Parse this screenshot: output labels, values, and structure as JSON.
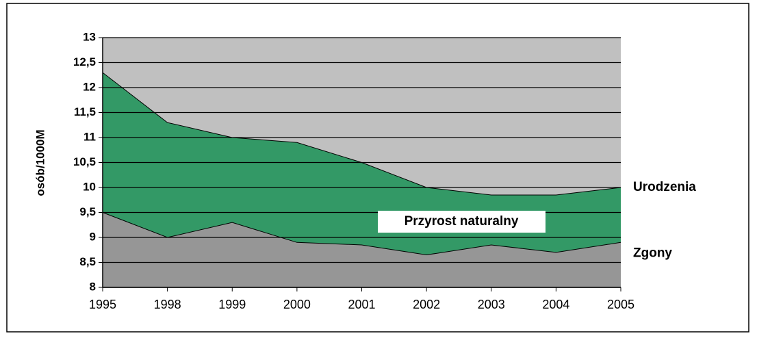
{
  "chart_data": {
    "type": "area",
    "y_label": "osób/1000M",
    "categories": [
      "1995",
      "1998",
      "1999",
      "2000",
      "2001",
      "2002",
      "2003",
      "2004",
      "2005"
    ],
    "series": [
      {
        "name": "Urodzenia",
        "color": "#339966",
        "values": [
          12.3,
          11.3,
          11.0,
          10.9,
          10.5,
          10.0,
          9.85,
          9.85,
          10.0
        ]
      },
      {
        "name": "Zgony",
        "color": "#969696",
        "values": [
          9.5,
          9.0,
          9.3,
          8.9,
          8.85,
          8.65,
          8.85,
          8.7,
          8.9
        ]
      }
    ],
    "annotation": "Przyrost naturalny",
    "background": "#c0c0c0",
    "ylim": [
      8,
      13
    ],
    "yticks": [
      8,
      {
        "value": 8.5,
        "label": "8,5"
      },
      9,
      {
        "value": 9.5,
        "label": "9,5"
      },
      10,
      {
        "value": 10.5,
        "label": "10,5"
      },
      11,
      {
        "value": 11.5,
        "label": "11,5"
      },
      12,
      {
        "value": 12.5,
        "label": "12,5"
      },
      13
    ],
    "grid": true
  }
}
